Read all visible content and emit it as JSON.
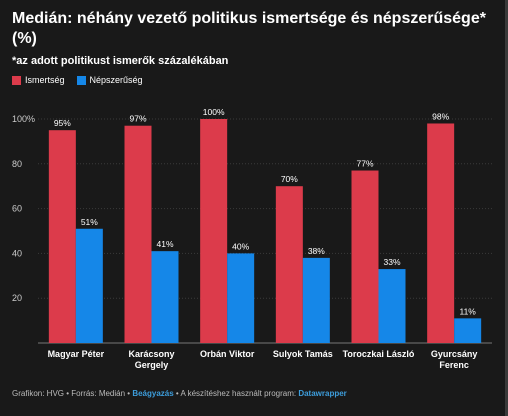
{
  "title": "Medián: néhány vezető politikus ismertsége és népszerűsége* (%)",
  "subtitle": "*az adott politikust ismerők százalékában",
  "colors": {
    "series1": "#dc3b4b",
    "series2": "#1587e8",
    "background": "#191919",
    "grid": "#3a3a3a"
  },
  "chart_data": {
    "type": "bar",
    "title": "Medián: néhány vezető politikus ismertsége és népszerűsége* (%)",
    "subtitle": "*az adott politikust ismerők százalékában",
    "categories": [
      [
        "Magyar Péter"
      ],
      [
        "Karácsony",
        "Gergely"
      ],
      [
        "Orbán Viktor"
      ],
      [
        "Sulyok Tamás"
      ],
      [
        "Toroczkai László"
      ],
      [
        "Gyurcsány",
        "Ferenc"
      ]
    ],
    "series": [
      {
        "name": "Ismertség",
        "values": [
          95,
          97,
          100,
          70,
          77,
          98
        ],
        "labels": [
          "95%",
          "97%",
          "100%",
          "70%",
          "77%",
          "98%"
        ]
      },
      {
        "name": "Népszerűség",
        "values": [
          51,
          41,
          40,
          38,
          33,
          11
        ],
        "labels": [
          "51%",
          "41%",
          "40%",
          "38%",
          "33%",
          "11%"
        ]
      }
    ],
    "ylim": [
      0,
      100
    ],
    "yticks": [
      20,
      40,
      60,
      80,
      100
    ],
    "ytick_labels": [
      "20",
      "40",
      "60",
      "80",
      "100%"
    ],
    "grid": true,
    "legend": "top-left"
  },
  "footer": {
    "source": "Grafikon: HVG • Forrás: Medián • ",
    "embed": "Beágyazás",
    "middle": " • A készítéshez használt program: ",
    "tool": "Datawrapper"
  }
}
